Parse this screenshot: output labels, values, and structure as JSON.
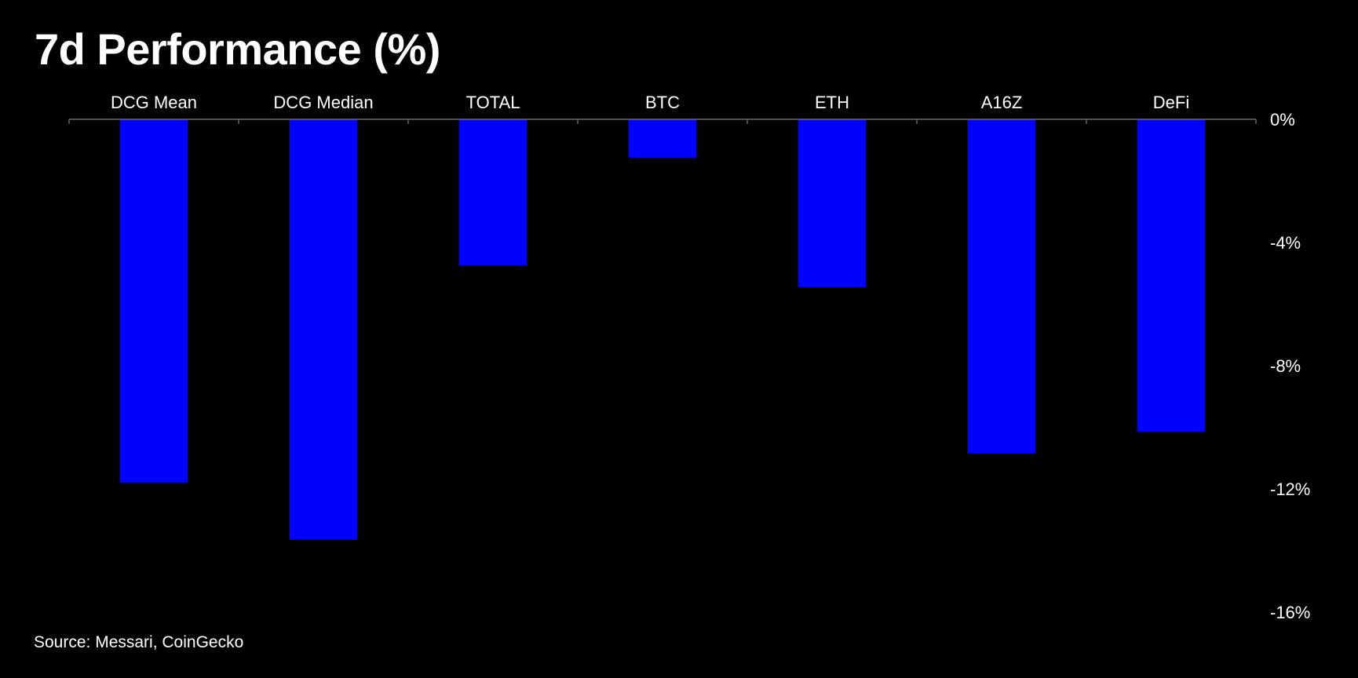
{
  "chart_data": {
    "type": "bar",
    "title": "7d Performance (%)",
    "source": "Source: Messari, CoinGecko",
    "categories": [
      "DCG Mean",
      "DCG Median",
      "TOTAL",
      "BTC",
      "ETH",
      "A16Z",
      "DeFi"
    ],
    "values": [
      -11.8,
      -13.65,
      -4.75,
      -1.25,
      -5.45,
      -10.85,
      -10.15
    ],
    "ylim": [
      -16,
      0
    ],
    "yticks": [
      0,
      -4,
      -8,
      -12,
      -16
    ],
    "ytick_labels": [
      "0%",
      "-4%",
      "-8%",
      "-12%",
      "-16%"
    ],
    "xlabel": "",
    "ylabel": "",
    "x_axis_position": "top",
    "y_axis_position": "right",
    "grid": false,
    "legend": "none",
    "colors": {
      "background": "#000000",
      "bar": "#0000FF",
      "text": "#FFFFFF",
      "axis": "#808080"
    }
  }
}
